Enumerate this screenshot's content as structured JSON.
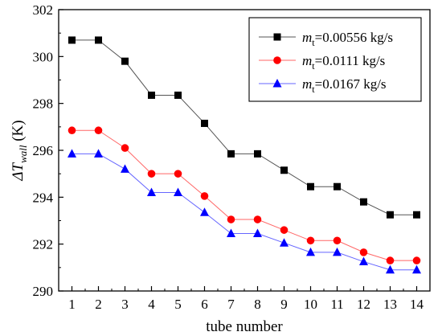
{
  "chart_data": {
    "type": "line",
    "xlabel": "tube number",
    "ylabel": {
      "main": "ΔT",
      "sub": "wall",
      "unit": " (K)"
    },
    "xlim": [
      0.5,
      14.5
    ],
    "ylim": [
      290,
      302
    ],
    "x_ticks": [
      1,
      2,
      3,
      4,
      5,
      6,
      7,
      8,
      9,
      10,
      11,
      12,
      13,
      14
    ],
    "y_ticks": [
      290,
      292,
      294,
      296,
      298,
      300,
      302
    ],
    "grid": false,
    "legend_position": "top-right",
    "x": [
      1,
      2,
      3,
      4,
      5,
      6,
      7,
      8,
      9,
      10,
      11,
      12,
      13,
      14
    ],
    "series": [
      {
        "name": "m_t=0.00556 kg/s",
        "label_main": "m",
        "label_sub": "t",
        "label_rest": "=0.00556 kg/s",
        "marker": "square",
        "marker_color": "#000000",
        "line_color": "#555555",
        "values": [
          300.7,
          300.7,
          299.8,
          298.35,
          298.35,
          297.15,
          295.85,
          295.85,
          295.15,
          294.45,
          294.45,
          293.8,
          293.25,
          293.25
        ]
      },
      {
        "name": "m_t=0.0111 kg/s",
        "label_main": "m",
        "label_sub": "t",
        "label_rest": "=0.0111 kg/s",
        "marker": "circle",
        "marker_color": "#ff0000",
        "line_color": "#ff6666",
        "values": [
          296.85,
          296.85,
          296.1,
          295.0,
          295.0,
          294.05,
          293.05,
          293.05,
          292.6,
          292.15,
          292.15,
          291.65,
          291.3,
          291.3
        ]
      },
      {
        "name": "m_t=0.0167 kg/s",
        "label_main": "m",
        "label_sub": "t",
        "label_rest": "=0.0167 kg/s",
        "marker": "triangle",
        "marker_color": "#0000ff",
        "line_color": "#6666ff",
        "values": [
          295.85,
          295.85,
          295.2,
          294.2,
          294.2,
          293.35,
          292.45,
          292.45,
          292.05,
          291.65,
          291.65,
          291.25,
          290.9,
          290.9
        ]
      }
    ]
  }
}
